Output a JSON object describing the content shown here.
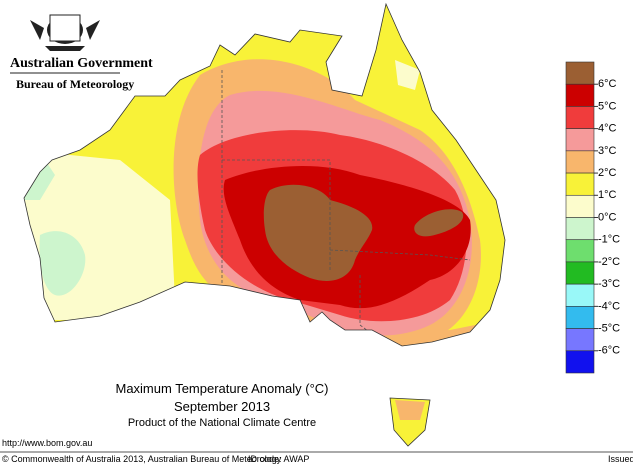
{
  "header": {
    "government": "Australian Government",
    "bureau": "Bureau of Meteorology"
  },
  "title": "Maximum Temperature Anomaly (°C)",
  "period": "September 2013",
  "product": "Product of the National Climate Centre",
  "legend": {
    "labels": [
      "6°C",
      "5°C",
      "4°C",
      "3°C",
      "2°C",
      "1°C",
      "0°C",
      "-1°C",
      "-2°C",
      "-3°C",
      "-4°C",
      "-5°C",
      "-6°C"
    ],
    "colors": [
      "#9b5f33",
      "#cc0000",
      "#f03c3c",
      "#f59a9a",
      "#f8b66c",
      "#f8f238",
      "#fcfccc",
      "#cdf5cd",
      "#6ede6e",
      "#22bb22",
      "#99f8f8",
      "#33bbee",
      "#7777ff",
      "#1111ee"
    ]
  },
  "footer": {
    "url": "http://www.bom.gov.au",
    "copyright": "© Commonwealth of Australia 2013, Australian Bureau of Meteorology",
    "id_code": "ID code: AWAP",
    "issued": "Issued"
  }
}
